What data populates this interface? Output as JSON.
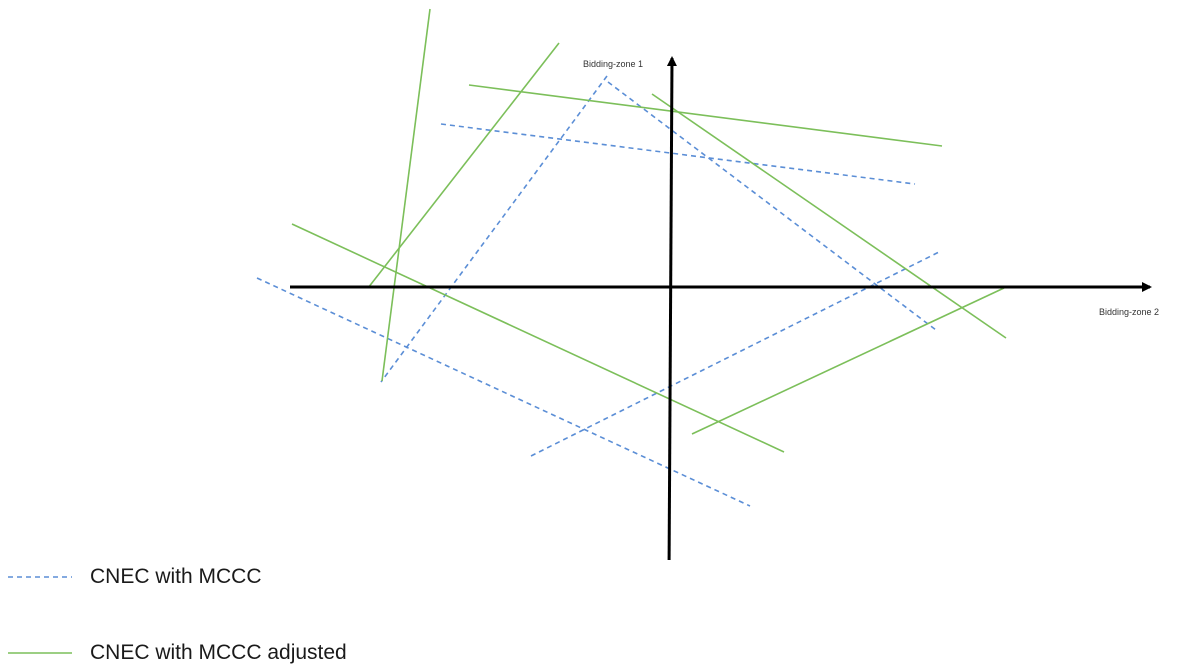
{
  "axes": {
    "vertical_label": "Bidding-zone 1",
    "horizontal_label": "Bidding-zone 2",
    "color": "#000000"
  },
  "colors": {
    "cnec_mccc": "#5b8ed6",
    "cnec_mccc_adjusted": "#7cbf5a"
  },
  "legend": {
    "items": [
      {
        "label": "CNEC with MCCC",
        "style": "dashed",
        "color": "#5b8ed6"
      },
      {
        "label": "CNEC with MCCC adjusted",
        "style": "solid",
        "color": "#7cbf5a"
      }
    ]
  }
}
